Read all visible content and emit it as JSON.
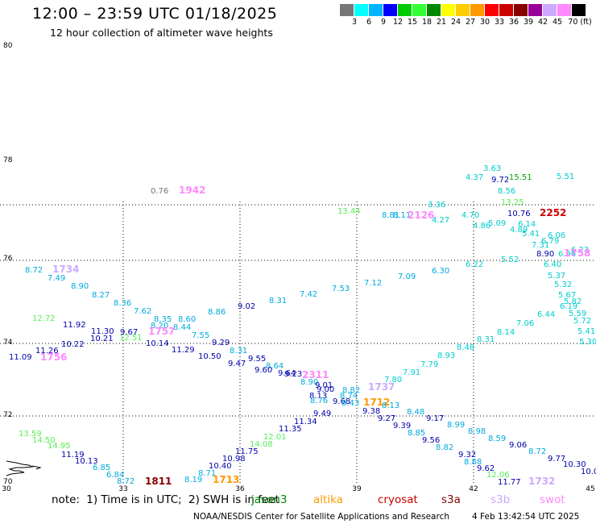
{
  "title": "12:00 – 23:59 UTC 01/18/2025",
  "subtitle": "12 hour collection of altimeter wave heights",
  "scale": {
    "colors": [
      "#777777",
      "#00ffff",
      "#00b4ff",
      "#0000ff",
      "#00cc00",
      "#33ff33",
      "#008800",
      "#ffff00",
      "#ffcc00",
      "#ff9900",
      "#ff0000",
      "#cc0000",
      "#880000",
      "#990099",
      "#ccaaff",
      "#ff88ff",
      "#000000"
    ],
    "labels": [
      "3",
      "6",
      "9",
      "12",
      "15",
      "18",
      "21",
      "24",
      "27",
      "30",
      "33",
      "36",
      "39",
      "42",
      "45",
      "70 (ft)"
    ]
  },
  "axes": {
    "lon_labels": [
      "30",
      "33",
      "36",
      "39",
      "42",
      "45"
    ],
    "lat_labels": [
      "80",
      "78",
      "76",
      "74",
      "72",
      "70"
    ]
  },
  "note": {
    "prefix": "note:",
    "items": [
      "1) Time is in UTC;",
      "2) SWH is in feet"
    ]
  },
  "satellites": [
    {
      "name": "jason3",
      "color": "#008800"
    },
    {
      "name": "altika",
      "color": "#ff9900"
    },
    {
      "name": "cryosat",
      "color": "#cc0000"
    },
    {
      "name": "s3a",
      "color": "#880000"
    },
    {
      "name": "s3b",
      "color": "#ccaaff"
    },
    {
      "name": "swot",
      "color": "#ff88ff"
    }
  ],
  "footer": "NOAA/NESDIS Center for Satellite Applications and Research",
  "footer_timestamp": "4 Feb 13:42:54 UTC 2025",
  "observations": [
    {
      "text": "0.76",
      "color": "#777777"
    },
    {
      "text": "1942",
      "color": "#ff88ff"
    },
    {
      "text": "3.63",
      "color": "#00cccc"
    },
    {
      "text": "4.37",
      "color": "#00cccc"
    },
    {
      "text": "9.72",
      "color": "#0000aa"
    },
    {
      "text": "15.51",
      "color": "#00aa00"
    },
    {
      "text": "5.51",
      "color": "#00cccc"
    },
    {
      "text": "8.56",
      "color": "#00cccc"
    },
    {
      "text": "13.25",
      "color": "#55ee55"
    },
    {
      "text": "13.44",
      "color": "#55ee55"
    },
    {
      "text": "8.81",
      "color": "#00aadd"
    },
    {
      "text": "8.11",
      "color": "#00aadd"
    },
    {
      "text": "2126",
      "color": "#ff88ff"
    },
    {
      "text": "3.36",
      "color": "#00cccc"
    },
    {
      "text": "4.27",
      "color": "#00cccc"
    },
    {
      "text": "4.70",
      "color": "#00cccc"
    },
    {
      "text": "10.76",
      "color": "#0000aa"
    },
    {
      "text": "2252",
      "color": "#cc0000"
    },
    {
      "text": "4.86",
      "color": "#00cccc"
    },
    {
      "text": "5.09",
      "color": "#00cccc"
    },
    {
      "text": "6.14",
      "color": "#00cccc"
    },
    {
      "text": "4.89",
      "color": "#00cccc"
    },
    {
      "text": "5.41",
      "color": "#00cccc"
    },
    {
      "text": "6.06",
      "color": "#00cccc"
    },
    {
      "text": "6.79",
      "color": "#00cccc"
    },
    {
      "text": "7.31",
      "color": "#00cccc"
    },
    {
      "text": "8.90",
      "color": "#0000aa"
    },
    {
      "text": "6.96",
      "color": "#00cccc"
    },
    {
      "text": "6.23",
      "color": "#00cccc"
    },
    {
      "text": "1758",
      "color": "#ff88ff"
    },
    {
      "text": "5.52",
      "color": "#00cccc"
    },
    {
      "text": "6.22",
      "color": "#00cccc"
    },
    {
      "text": "6.40",
      "color": "#00cccc"
    },
    {
      "text": "8.72",
      "color": "#00aadd"
    },
    {
      "text": "1734",
      "color": "#ccaaff"
    },
    {
      "text": "7.49",
      "color": "#00aadd"
    },
    {
      "text": "8.90",
      "color": "#00aadd"
    },
    {
      "text": "8.27",
      "color": "#00aadd"
    },
    {
      "text": "8.36",
      "color": "#00aadd"
    },
    {
      "text": "7.62",
      "color": "#00aadd"
    },
    {
      "text": "8.35",
      "color": "#00aadd"
    },
    {
      "text": "8.20",
      "color": "#00aadd"
    },
    {
      "text": "8.60",
      "color": "#00aadd"
    },
    {
      "text": "8.44",
      "color": "#00aadd"
    },
    {
      "text": "8.86",
      "color": "#00aadd"
    },
    {
      "text": "7.55",
      "color": "#00aadd"
    },
    {
      "text": "9.02",
      "color": "#0000aa"
    },
    {
      "text": "8.31",
      "color": "#00aadd"
    },
    {
      "text": "7.42",
      "color": "#00aadd"
    },
    {
      "text": "7.53",
      "color": "#00aadd"
    },
    {
      "text": "7.12",
      "color": "#00aadd"
    },
    {
      "text": "7.09",
      "color": "#00aadd"
    },
    {
      "text": "6.30",
      "color": "#00aadd"
    },
    {
      "text": "5.37",
      "color": "#00cccc"
    },
    {
      "text": "5.32",
      "color": "#00cccc"
    },
    {
      "text": "5.67",
      "color": "#00cccc"
    },
    {
      "text": "5.82",
      "color": "#00cccc"
    },
    {
      "text": "6.19",
      "color": "#00cccc"
    },
    {
      "text": "6.44",
      "color": "#00cccc"
    },
    {
      "text": "5.59",
      "color": "#00cccc"
    },
    {
      "text": "7.06",
      "color": "#00cccc"
    },
    {
      "text": "8.14",
      "color": "#00cccc"
    },
    {
      "text": "8.31",
      "color": "#00cccc"
    },
    {
      "text": "8.48",
      "color": "#00cccc"
    },
    {
      "text": "8.93",
      "color": "#00cccc"
    },
    {
      "text": "7.79",
      "color": "#00cccc"
    },
    {
      "text": "7.91",
      "color": "#00cccc"
    },
    {
      "text": "7.80",
      "color": "#00cccc"
    },
    {
      "text": "12.72",
      "color": "#55ee55"
    },
    {
      "text": "11.92",
      "color": "#0000aa"
    },
    {
      "text": "11.30",
      "color": "#0000aa"
    },
    {
      "text": "9.67",
      "color": "#0000aa"
    },
    {
      "text": "10.21",
      "color": "#0000aa"
    },
    {
      "text": "12.51",
      "color": "#55ee55"
    },
    {
      "text": "1757",
      "color": "#ff88ff"
    },
    {
      "text": "10.14",
      "color": "#0000aa"
    },
    {
      "text": "11.29",
      "color": "#0000aa"
    },
    {
      "text": "9.29",
      "color": "#0000aa"
    },
    {
      "text": "10.50",
      "color": "#0000aa"
    },
    {
      "text": "8.31",
      "color": "#00aadd"
    },
    {
      "text": "9.55",
      "color": "#0000aa"
    },
    {
      "text": "9.47",
      "color": "#0000aa"
    },
    {
      "text": "8.64",
      "color": "#00aadd"
    },
    {
      "text": "9.60",
      "color": "#0000aa"
    },
    {
      "text": "9.64",
      "color": "#0000aa"
    },
    {
      "text": "9.23",
      "color": "#0000aa"
    },
    {
      "text": "2311",
      "color": "#ff88ff"
    },
    {
      "text": "8.90",
      "color": "#00aadd"
    },
    {
      "text": "9.01",
      "color": "#0000aa"
    },
    {
      "text": "9.00",
      "color": "#0000aa"
    },
    {
      "text": "8.82",
      "color": "#00aadd"
    },
    {
      "text": "1737",
      "color": "#ccaaff"
    },
    {
      "text": "8.74",
      "color": "#00aadd"
    },
    {
      "text": "8.13",
      "color": "#0000aa"
    },
    {
      "text": "8.76",
      "color": "#00aadd"
    },
    {
      "text": "9.68",
      "color": "#0000aa"
    },
    {
      "text": "8.43",
      "color": "#00aadd"
    },
    {
      "text": "1712",
      "color": "#ff9900"
    },
    {
      "text": "8.13",
      "color": "#00aadd"
    },
    {
      "text": "9.38",
      "color": "#0000aa"
    },
    {
      "text": "8.48",
      "color": "#00aadd"
    },
    {
      "text": "9.27",
      "color": "#0000aa"
    },
    {
      "text": "9.17",
      "color": "#0000aa"
    },
    {
      "text": "8.99",
      "color": "#00aadd"
    },
    {
      "text": "11.26",
      "color": "#0000aa"
    },
    {
      "text": "10.22",
      "color": "#0000aa"
    },
    {
      "text": "11.09",
      "color": "#0000aa"
    },
    {
      "text": "1756",
      "color": "#ff88ff"
    },
    {
      "text": "9.49",
      "color": "#0000aa"
    },
    {
      "text": "11.34",
      "color": "#0000aa"
    },
    {
      "text": "9.39",
      "color": "#0000aa"
    },
    {
      "text": "8.85",
      "color": "#00aadd"
    },
    {
      "text": "9.56",
      "color": "#0000aa"
    },
    {
      "text": "8.98",
      "color": "#00aadd"
    },
    {
      "text": "8.59",
      "color": "#00aadd"
    },
    {
      "text": "9.06",
      "color": "#0000aa"
    },
    {
      "text": "8.72",
      "color": "#00aadd"
    },
    {
      "text": "9.77",
      "color": "#0000aa"
    },
    {
      "text": "11.35",
      "color": "#0000aa"
    },
    {
      "text": "12.01",
      "color": "#55ee55"
    },
    {
      "text": "14.08",
      "color": "#55ee55"
    },
    {
      "text": "8.82",
      "color": "#00aadd"
    },
    {
      "text": "9.32",
      "color": "#0000aa"
    },
    {
      "text": "8.88",
      "color": "#00aadd"
    },
    {
      "text": "9.62",
      "color": "#0000aa"
    },
    {
      "text": "10.30",
      "color": "#0000aa"
    },
    {
      "text": "10.0",
      "color": "#0000aa"
    },
    {
      "text": "13.59",
      "color": "#55ee55"
    },
    {
      "text": "14.50",
      "color": "#55ee55"
    },
    {
      "text": "14.95",
      "color": "#55ee55"
    },
    {
      "text": "11.19",
      "color": "#0000aa"
    },
    {
      "text": "10.13",
      "color": "#0000aa"
    },
    {
      "text": "6.85",
      "color": "#00aadd"
    },
    {
      "text": "6.84",
      "color": "#00aadd"
    },
    {
      "text": "8.72",
      "color": "#00aadd"
    },
    {
      "text": "1811",
      "color": "#880000"
    },
    {
      "text": "8.19",
      "color": "#00aadd"
    },
    {
      "text": "8.71",
      "color": "#00aadd"
    },
    {
      "text": "10.40",
      "color": "#0000aa"
    },
    {
      "text": "10.98",
      "color": "#0000aa"
    },
    {
      "text": "11.75",
      "color": "#0000aa"
    },
    {
      "text": "1713",
      "color": "#ff9900"
    },
    {
      "text": "12.06",
      "color": "#55ee55"
    },
    {
      "text": "11.77",
      "color": "#0000aa"
    },
    {
      "text": "1732",
      "color": "#ccaaff"
    },
    {
      "text": "5.72",
      "color": "#00cccc"
    },
    {
      "text": "5.41",
      "color": "#00cccc"
    },
    {
      "text": "5.30",
      "color": "#00cccc"
    }
  ]
}
